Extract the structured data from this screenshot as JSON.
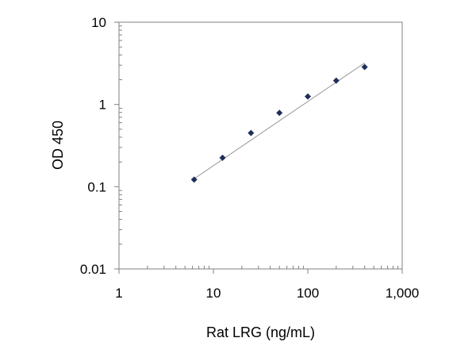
{
  "chart_data": {
    "type": "scatter",
    "xlabel": "Rat LRG (ng/mL)",
    "ylabel": "OD 450",
    "x_scale": "log",
    "y_scale": "log",
    "xlim": [
      1,
      1000
    ],
    "ylim": [
      0.01,
      10
    ],
    "x_ticks": [
      {
        "value": 1,
        "label": "1"
      },
      {
        "value": 10,
        "label": "10"
      },
      {
        "value": 100,
        "label": "100"
      },
      {
        "value": 1000,
        "label": "1,000"
      }
    ],
    "y_ticks": [
      {
        "value": 0.01,
        "label": "0.01"
      },
      {
        "value": 0.1,
        "label": "0.1"
      },
      {
        "value": 1,
        "label": "1"
      },
      {
        "value": 10,
        "label": "10"
      }
    ],
    "grid": false,
    "series": [
      {
        "marker": "diamond",
        "color": "#1f2d5c",
        "points": [
          {
            "x": 6.25,
            "y": 0.122
          },
          {
            "x": 12.5,
            "y": 0.225
          },
          {
            "x": 25,
            "y": 0.45
          },
          {
            "x": 50,
            "y": 0.79
          },
          {
            "x": 100,
            "y": 1.25
          },
          {
            "x": 200,
            "y": 1.95
          },
          {
            "x": 400,
            "y": 2.85
          }
        ]
      }
    ],
    "trendline": {
      "color": "#999999",
      "points": [
        {
          "x": 6.25,
          "y": 0.125
        },
        {
          "x": 400,
          "y": 3.2
        }
      ]
    }
  }
}
